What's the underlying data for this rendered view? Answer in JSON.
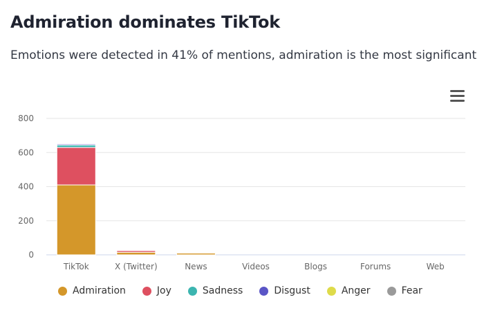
{
  "header": {
    "title": "Admiration dominates TikTok",
    "subtitle": "Emotions were detected in 41% of mentions, admiration is the most significant"
  },
  "menu_icon": "hamburger-menu-icon",
  "colors": {
    "Admiration": "#d4972a",
    "Joy": "#de5060",
    "Sadness": "#3cb5b0",
    "Disgust": "#5a55c6",
    "Anger": "#dedb4a",
    "Fear": "#9a9a9a"
  },
  "chart_data": {
    "type": "bar",
    "stacked": true,
    "categories": [
      "TikTok",
      "X (Twitter)",
      "News",
      "Videos",
      "Blogs",
      "Forums",
      "Web"
    ],
    "series": [
      {
        "name": "Admiration",
        "values": [
          410,
          15,
          10,
          0,
          0,
          0,
          0
        ]
      },
      {
        "name": "Joy",
        "values": [
          220,
          10,
          2,
          0,
          0,
          0,
          0
        ]
      },
      {
        "name": "Sadness",
        "values": [
          14,
          4,
          1,
          0,
          0,
          0,
          0
        ]
      },
      {
        "name": "Disgust",
        "values": [
          6,
          3,
          0,
          0,
          0,
          0,
          0
        ]
      },
      {
        "name": "Anger",
        "values": [
          2,
          2,
          0,
          0,
          0,
          0,
          0
        ]
      },
      {
        "name": "Fear",
        "values": [
          2,
          1,
          0,
          0,
          0,
          0,
          0
        ]
      }
    ],
    "ylim": [
      0,
      800
    ],
    "yticks": [
      0,
      200,
      400,
      600,
      800
    ],
    "grid": true,
    "legend": "bottom"
  }
}
